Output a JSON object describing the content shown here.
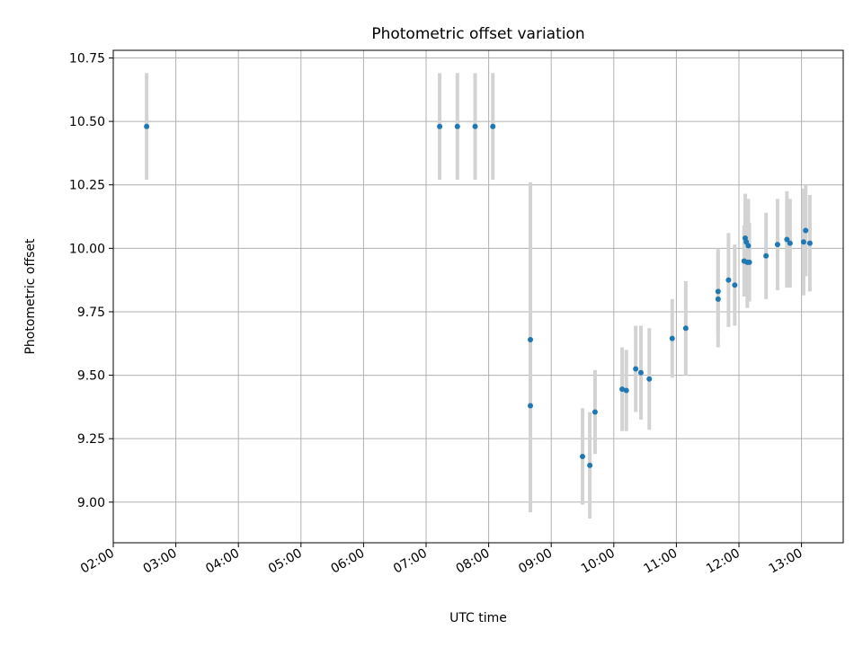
{
  "chart_data": {
    "type": "scatter",
    "title": "Photometric offset variation",
    "xlabel": "UTC time",
    "ylabel": "Photometric offset",
    "xlim": [
      "02:00",
      "13:40"
    ],
    "ylim": [
      8.84,
      10.78
    ],
    "grid": true,
    "legend": "none",
    "x_ticks": [
      "02:00",
      "03:00",
      "04:00",
      "05:00",
      "06:00",
      "07:00",
      "08:00",
      "09:00",
      "10:00",
      "11:00",
      "12:00",
      "13:00"
    ],
    "y_ticks": [
      "9.00",
      "9.25",
      "9.50",
      "9.75",
      "10.00",
      "10.25",
      "10.50",
      "10.75"
    ],
    "point_color": "#1f77b4",
    "errorbar_color": "#d3d3d3",
    "points": [
      {
        "t": "02:32",
        "y": 10.48,
        "err": 0.21
      },
      {
        "t": "07:13",
        "y": 10.48,
        "err": 0.21
      },
      {
        "t": "07:30",
        "y": 10.48,
        "err": 0.21
      },
      {
        "t": "07:47",
        "y": 10.48,
        "err": 0.21
      },
      {
        "t": "08:04",
        "y": 10.48,
        "err": 0.21
      },
      {
        "t": "08:40",
        "y": 9.64,
        "err": 0.62
      },
      {
        "t": "08:40",
        "y": 9.38,
        "err": 0.42
      },
      {
        "t": "09:30",
        "y": 9.18,
        "err": 0.19
      },
      {
        "t": "09:37",
        "y": 9.145,
        "err": 0.21
      },
      {
        "t": "09:42",
        "y": 9.355,
        "err": 0.165
      },
      {
        "t": "10:08",
        "y": 9.445,
        "err": 0.165
      },
      {
        "t": "10:12",
        "y": 9.44,
        "err": 0.16
      },
      {
        "t": "10:21",
        "y": 9.525,
        "err": 0.17
      },
      {
        "t": "10:26",
        "y": 9.51,
        "err": 0.185
      },
      {
        "t": "10:34",
        "y": 9.485,
        "err": 0.2
      },
      {
        "t": "10:56",
        "y": 9.645,
        "err": 0.155
      },
      {
        "t": "11:09",
        "y": 9.685,
        "err": 0.185
      },
      {
        "t": "11:40",
        "y": 9.83,
        "err": 0.17
      },
      {
        "t": "11:40",
        "y": 9.8,
        "err": 0.19
      },
      {
        "t": "11:50",
        "y": 9.875,
        "err": 0.185
      },
      {
        "t": "11:56",
        "y": 9.855,
        "err": 0.16
      },
      {
        "t": "12:05",
        "y": 9.95,
        "err": 0.14
      },
      {
        "t": "12:06",
        "y": 10.04,
        "err": 0.175
      },
      {
        "t": "12:07",
        "y": 10.025,
        "err": 0.17
      },
      {
        "t": "12:08",
        "y": 9.945,
        "err": 0.18
      },
      {
        "t": "12:09",
        "y": 10.01,
        "err": 0.185
      },
      {
        "t": "12:10",
        "y": 9.945,
        "err": 0.155
      },
      {
        "t": "12:26",
        "y": 9.97,
        "err": 0.17
      },
      {
        "t": "12:37",
        "y": 10.015,
        "err": 0.18
      },
      {
        "t": "12:46",
        "y": 10.035,
        "err": 0.19
      },
      {
        "t": "12:49",
        "y": 10.02,
        "err": 0.175
      },
      {
        "t": "13:02",
        "y": 10.025,
        "err": 0.21
      },
      {
        "t": "13:04",
        "y": 10.07,
        "err": 0.18
      },
      {
        "t": "13:08",
        "y": 10.02,
        "err": 0.19
      }
    ]
  }
}
